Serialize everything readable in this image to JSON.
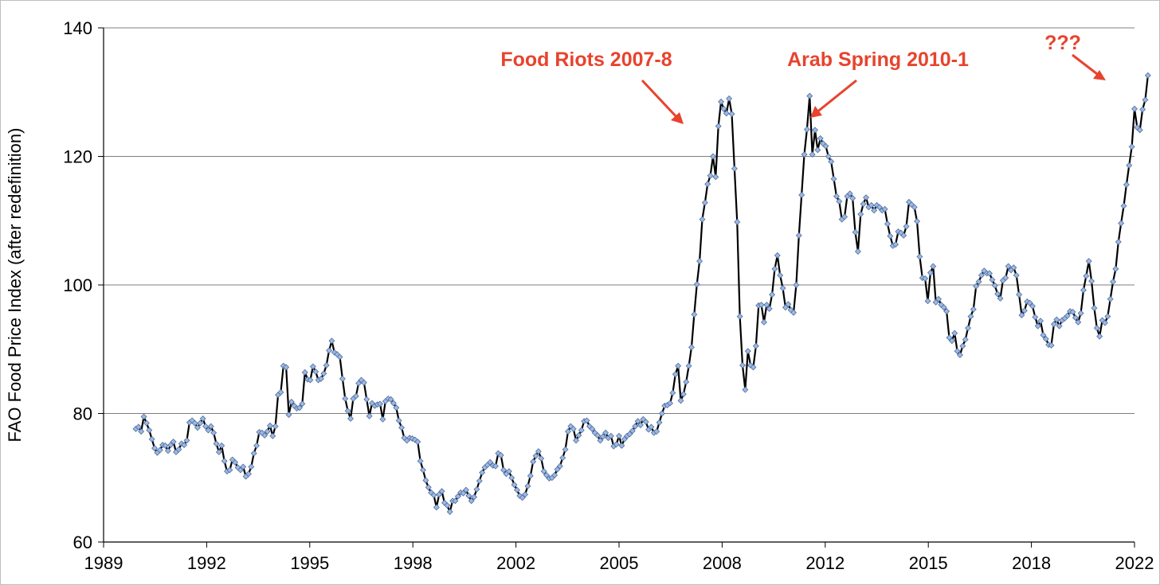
{
  "chart_data": {
    "type": "line",
    "title": "",
    "xlabel": "",
    "ylabel": "FAO Food Price Index (after redefinition)",
    "ylim": [
      60,
      140
    ],
    "yticks": [
      60,
      80,
      100,
      120,
      140
    ],
    "grid": true,
    "legend": "none",
    "xlim_index": [
      0,
      384
    ],
    "x_tick_labels": [
      "1989",
      "1992",
      "1995",
      "1998",
      "2002",
      "2005",
      "2008",
      "2012",
      "2015",
      "2018",
      "2022"
    ],
    "colors": {
      "line": "#000000",
      "marker_fill": "#9DB9E6",
      "marker_stroke": "#4F6C99",
      "annotation": "#E8432D",
      "grid": "#7f7f7f",
      "axis": "#000000"
    },
    "series": [
      {
        "start_index": 12,
        "values": [
          77.6,
          77.9,
          77.2,
          79.5,
          78.5,
          77.4,
          76.0,
          74.6,
          73.9,
          74.3,
          75.1,
          75.0,
          74.2,
          75.1,
          75.6,
          74.0,
          74.4,
          75.3,
          75.1,
          75.8,
          78.6,
          78.9,
          78.5,
          77.8,
          78.5,
          79.2,
          78.0,
          77.4,
          78.0,
          77.0,
          75.3,
          74.0,
          75.0,
          72.6,
          71.0,
          71.2,
          72.8,
          72.4,
          71.6,
          71.2,
          71.7,
          70.2,
          70.6,
          71.7,
          73.8,
          75.0,
          77.1,
          77.0,
          76.6,
          77.2,
          78.1,
          76.5,
          78.0,
          82.9,
          83.3,
          87.4,
          87.2,
          79.8,
          81.8,
          81.2,
          80.8,
          80.9,
          81.5,
          86.4,
          85.3,
          85.2,
          87.3,
          86.5,
          85.2,
          85.4,
          86.2,
          87.5,
          89.8,
          91.3,
          89.5,
          89.2,
          88.8,
          85.4,
          82.3,
          80.4,
          79.2,
          82.3,
          82.7,
          84.7,
          85.2,
          84.8,
          82.2,
          79.6,
          81.6,
          81.2,
          81.4,
          81.5,
          79.1,
          81.9,
          82.3,
          82.2,
          81.6,
          80.9,
          78.9,
          77.8,
          76.2,
          75.8,
          76.2,
          76.1,
          75.9,
          75.6,
          72.6,
          71.2,
          69.6,
          68.5,
          67.7,
          67.3,
          65.4,
          67.4,
          67.9,
          66.1,
          65.7,
          64.7,
          66.4,
          66.4,
          67.1,
          67.7,
          67.6,
          68.1,
          67.2,
          66.4,
          67.0,
          68.2,
          69.5,
          70.8,
          71.6,
          72.0,
          72.4,
          71.9,
          71.8,
          73.8,
          73.5,
          71.2,
          70.6,
          71.0,
          70.0,
          68.9,
          68.1,
          67.2,
          66.9,
          67.4,
          68.7,
          70.3,
          72.5,
          73.4,
          74.1,
          73.0,
          71.0,
          70.4,
          69.9,
          70.0,
          70.4,
          71.3,
          71.8,
          73.1,
          74.4,
          77.2,
          78.0,
          77.6,
          75.8,
          76.6,
          77.4,
          78.8,
          78.9,
          78.0,
          77.6,
          77.0,
          76.6,
          75.8,
          76.4,
          77.0,
          76.2,
          76.5,
          74.9,
          75.2,
          76.5,
          75.0,
          76.0,
          76.5,
          76.8,
          77.3,
          78.0,
          78.8,
          78.2,
          79.1,
          78.7,
          77.5,
          77.9,
          77.0,
          77.2,
          78.6,
          80.0,
          81.2,
          81.3,
          81.6,
          83.2,
          86.1,
          87.4,
          82.0,
          83.0,
          84.9,
          87.4,
          90.3,
          95.4,
          100.1,
          103.7,
          110.2,
          112.8,
          115.7,
          117.0,
          120.0,
          116.8,
          124.7,
          128.5,
          127.4,
          126.7,
          129.0,
          126.6,
          118.1,
          109.8,
          95.1,
          87.5,
          83.7,
          89.7,
          87.5,
          87.2,
          90.5,
          96.8,
          96.9,
          94.2,
          96.9,
          96.3,
          98.5,
          102.5,
          104.6,
          101.5,
          99.5,
          96.5,
          97.0,
          96.1,
          95.7,
          100.0,
          107.7,
          114.0,
          120.3,
          124.2,
          129.4,
          120.3,
          124.1,
          121.0,
          122.8,
          122.0,
          121.6,
          120.0,
          119.2,
          116.5,
          113.8,
          113.0,
          110.2,
          110.6,
          113.8,
          114.2,
          113.5,
          108.2,
          105.2,
          111.0,
          112.6,
          113.6,
          112.1,
          112.4,
          111.6,
          112.4,
          112.1,
          111.6,
          111.8,
          109.5,
          107.6,
          106.1,
          106.3,
          108.3,
          108.1,
          107.7,
          109.1,
          112.9,
          112.5,
          112.1,
          109.9,
          104.4,
          101.1,
          101.0,
          97.5,
          101.9,
          102.9,
          97.3,
          97.8,
          96.9,
          96.5,
          95.9,
          91.8,
          91.3,
          92.5,
          89.7,
          89.1,
          90.5,
          91.5,
          93.3,
          95.1,
          96.2,
          99.8,
          100.5,
          101.5,
          102.2,
          101.8,
          101.8,
          100.8,
          99.9,
          98.6,
          97.9,
          100.7,
          101.1,
          102.9,
          102.3,
          102.7,
          101.5,
          98.5,
          95.3,
          96.0,
          97.4,
          97.2,
          96.7,
          95.0,
          93.6,
          94.4,
          92.2,
          91.6,
          90.7,
          90.6,
          93.9,
          94.6,
          93.6,
          94.5,
          94.8,
          95.2,
          95.9,
          95.8,
          94.9,
          94.2,
          95.6,
          99.2,
          101.4,
          103.7,
          100.6,
          96.4,
          93.3,
          92.0,
          94.5,
          94.1,
          95.1,
          97.8,
          100.5,
          102.5,
          106.7,
          109.6,
          112.3,
          115.6,
          118.6,
          121.5,
          127.4,
          124.5,
          124.1,
          127.3,
          128.8,
          132.6
        ]
      }
    ],
    "annotations": [
      {
        "text": "Food Riots 2007-8"
      },
      {
        "text": "Arab Spring 2010-1"
      },
      {
        "text": "???"
      }
    ]
  }
}
